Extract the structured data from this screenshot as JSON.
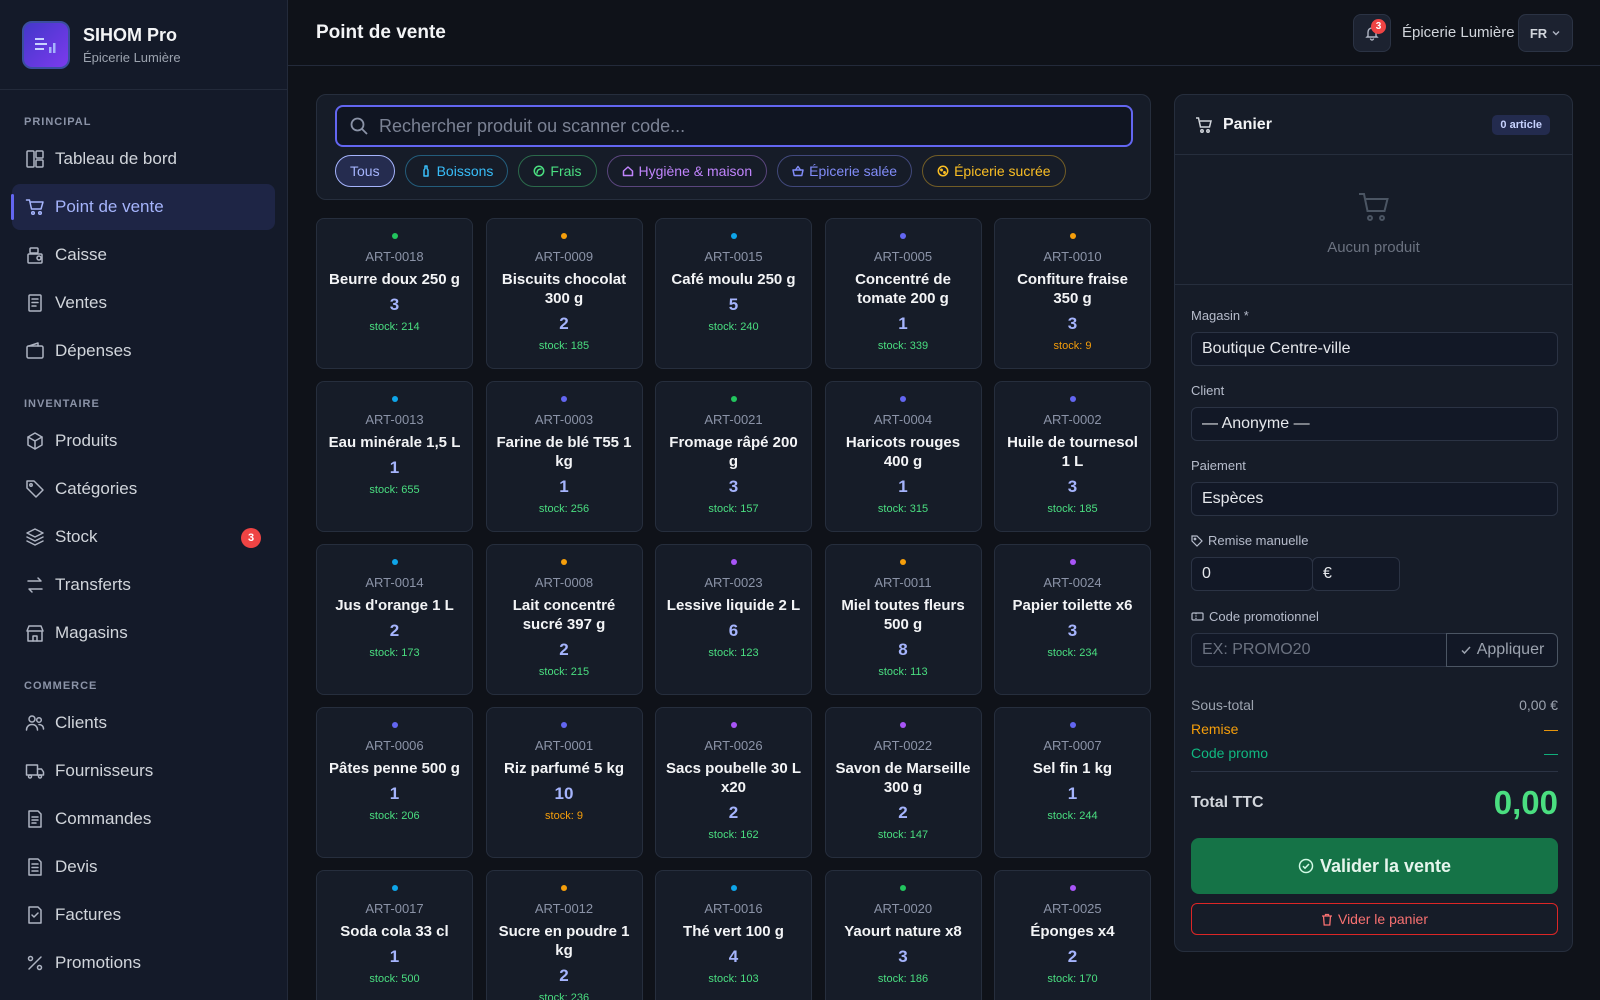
{
  "app": {
    "name": "SIHOM Pro",
    "store": "Épicerie Lumière"
  },
  "sidebar": {
    "sections": [
      {
        "title": "PRINCIPAL",
        "items": [
          {
            "label": "Tableau de bord",
            "icon": "dashboard-icon"
          },
          {
            "label": "Point de vente",
            "icon": "cart-icon",
            "active": true
          },
          {
            "label": "Caisse",
            "icon": "cash-register-icon"
          },
          {
            "label": "Ventes",
            "icon": "receipt-icon"
          },
          {
            "label": "Dépenses",
            "icon": "wallet-icon"
          }
        ]
      },
      {
        "title": "INVENTAIRE",
        "items": [
          {
            "label": "Produits",
            "icon": "box-icon"
          },
          {
            "label": "Catégories",
            "icon": "tag-icon"
          },
          {
            "label": "Stock",
            "icon": "layers-icon",
            "badge": "3"
          },
          {
            "label": "Transferts",
            "icon": "transfer-icon"
          },
          {
            "label": "Magasins",
            "icon": "store-icon"
          }
        ]
      },
      {
        "title": "COMMERCE",
        "items": [
          {
            "label": "Clients",
            "icon": "users-icon"
          },
          {
            "label": "Fournisseurs",
            "icon": "truck-icon"
          },
          {
            "label": "Commandes",
            "icon": "order-icon"
          },
          {
            "label": "Devis",
            "icon": "quote-icon"
          },
          {
            "label": "Factures",
            "icon": "invoice-icon"
          },
          {
            "label": "Promotions",
            "icon": "percent-icon"
          }
        ]
      }
    ]
  },
  "header": {
    "title": "Point de vente",
    "notifications": "3",
    "store": "Épicerie Lumière",
    "lang": "FR"
  },
  "search": {
    "placeholder": "Rechercher produit ou scanner code..."
  },
  "categories": [
    {
      "label": "Tous",
      "color": "#a5b4fc",
      "active": true
    },
    {
      "label": "Boissons",
      "color": "#38bdf8",
      "icon": "bottle-icon"
    },
    {
      "label": "Frais",
      "color": "#4ade80",
      "icon": "leaf-icon"
    },
    {
      "label": "Hygiène & maison",
      "color": "#c084fc",
      "icon": "home-icon"
    },
    {
      "label": "Épicerie salée",
      "color": "#818cf8",
      "icon": "basket-icon"
    },
    {
      "label": "Épicerie sucrée",
      "color": "#fbbf24",
      "icon": "cookie-icon"
    }
  ],
  "products": [
    {
      "sku": "ART-0018",
      "name": "Beurre doux 250 g",
      "price": "3",
      "stock": "stock: 214",
      "dot": "#22c55e",
      "low": false
    },
    {
      "sku": "ART-0009",
      "name": "Biscuits chocolat 300 g",
      "price": "2",
      "stock": "stock: 185",
      "dot": "#f59e0b",
      "low": false
    },
    {
      "sku": "ART-0015",
      "name": "Café moulu 250 g",
      "price": "5",
      "stock": "stock: 240",
      "dot": "#0ea5e9",
      "low": false
    },
    {
      "sku": "ART-0005",
      "name": "Concentré de tomate 200 g",
      "price": "1",
      "stock": "stock: 339",
      "dot": "#6366f1",
      "low": false
    },
    {
      "sku": "ART-0010",
      "name": "Confiture fraise 350 g",
      "price": "3",
      "stock": "stock: 9",
      "dot": "#f59e0b",
      "low": true
    },
    {
      "sku": "ART-0013",
      "name": "Eau minérale 1,5 L",
      "price": "1",
      "stock": "stock: 655",
      "dot": "#0ea5e9",
      "low": false
    },
    {
      "sku": "ART-0003",
      "name": "Farine de blé T55 1 kg",
      "price": "1",
      "stock": "stock: 256",
      "dot": "#6366f1",
      "low": false
    },
    {
      "sku": "ART-0021",
      "name": "Fromage râpé 200 g",
      "price": "3",
      "stock": "stock: 157",
      "dot": "#22c55e",
      "low": false
    },
    {
      "sku": "ART-0004",
      "name": "Haricots rouges 400 g",
      "price": "1",
      "stock": "stock: 315",
      "dot": "#6366f1",
      "low": false
    },
    {
      "sku": "ART-0002",
      "name": "Huile de tournesol 1 L",
      "price": "3",
      "stock": "stock: 185",
      "dot": "#6366f1",
      "low": false
    },
    {
      "sku": "ART-0014",
      "name": "Jus d'orange 1 L",
      "price": "2",
      "stock": "stock: 173",
      "dot": "#0ea5e9",
      "low": false
    },
    {
      "sku": "ART-0008",
      "name": "Lait concentré sucré 397 g",
      "price": "2",
      "stock": "stock: 215",
      "dot": "#f59e0b",
      "low": false
    },
    {
      "sku": "ART-0023",
      "name": "Lessive liquide 2 L",
      "price": "6",
      "stock": "stock: 123",
      "dot": "#a855f7",
      "low": false
    },
    {
      "sku": "ART-0011",
      "name": "Miel toutes fleurs 500 g",
      "price": "8",
      "stock": "stock: 113",
      "dot": "#f59e0b",
      "low": false
    },
    {
      "sku": "ART-0024",
      "name": "Papier toilette x6",
      "price": "3",
      "stock": "stock: 234",
      "dot": "#a855f7",
      "low": false
    },
    {
      "sku": "ART-0006",
      "name": "Pâtes penne 500 g",
      "price": "1",
      "stock": "stock: 206",
      "dot": "#6366f1",
      "low": false
    },
    {
      "sku": "ART-0001",
      "name": "Riz parfumé 5 kg",
      "price": "10",
      "stock": "stock: 9",
      "dot": "#6366f1",
      "low": true
    },
    {
      "sku": "ART-0026",
      "name": "Sacs poubelle 30 L x20",
      "price": "2",
      "stock": "stock: 162",
      "dot": "#a855f7",
      "low": false
    },
    {
      "sku": "ART-0022",
      "name": "Savon de Marseille 300 g",
      "price": "2",
      "stock": "stock: 147",
      "dot": "#a855f7",
      "low": false
    },
    {
      "sku": "ART-0007",
      "name": "Sel fin 1 kg",
      "price": "1",
      "stock": "stock: 244",
      "dot": "#6366f1",
      "low": false
    },
    {
      "sku": "ART-0017",
      "name": "Soda cola 33 cl",
      "price": "1",
      "stock": "stock: 500",
      "dot": "#0ea5e9",
      "low": false
    },
    {
      "sku": "ART-0012",
      "name": "Sucre en poudre 1 kg",
      "price": "2",
      "stock": "stock: 236",
      "dot": "#f59e0b",
      "low": false
    },
    {
      "sku": "ART-0016",
      "name": "Thé vert 100 g",
      "price": "4",
      "stock": "stock: 103",
      "dot": "#0ea5e9",
      "low": false
    },
    {
      "sku": "ART-0020",
      "name": "Yaourt nature x8",
      "price": "3",
      "stock": "stock: 186",
      "dot": "#22c55e",
      "low": false
    },
    {
      "sku": "ART-0025",
      "name": "Éponges x4",
      "price": "2",
      "stock": "stock: 170",
      "dot": "#a855f7",
      "low": false
    }
  ],
  "cart": {
    "title": "Panier",
    "count": "0 article",
    "empty": "Aucun produit",
    "store_label": "Magasin *",
    "store_value": "Boutique Centre-ville",
    "client_label": "Client",
    "client_value": "— Anonyme —",
    "payment_label": "Paiement",
    "payment_value": "Espèces",
    "discount_label": "Remise manuelle",
    "discount_value": "0",
    "discount_unit": "€",
    "promo_label": "Code promotionnel",
    "promo_placeholder": "EX: PROMO20",
    "apply": "Appliquer",
    "subtotal_label": "Sous-total",
    "subtotal_value": "0,00 €",
    "remise_label": "Remise",
    "remise_value": "—",
    "promo_code_label": "Code promo",
    "promo_code_value": "—",
    "total_label": "Total TTC",
    "total_value": "0,00",
    "validate": "Valider la vente",
    "clear": "Vider le panier"
  },
  "colors": {
    "accent": "#6366f1",
    "success": "#157347",
    "danger": "#dc2626",
    "ok_stock": "#4ade80",
    "low_stock": "#f59e0b"
  }
}
